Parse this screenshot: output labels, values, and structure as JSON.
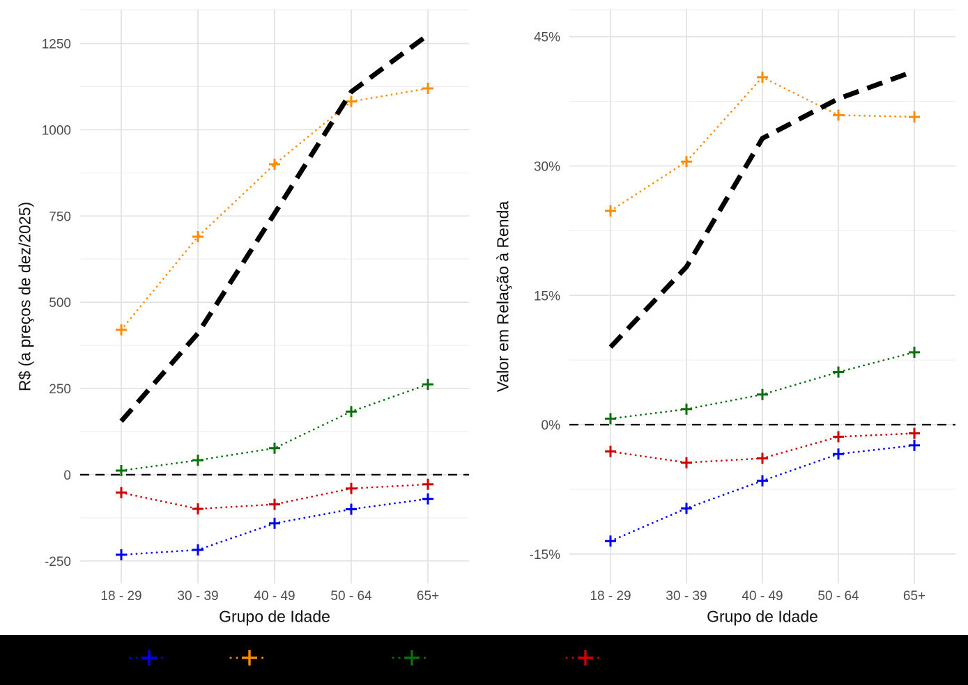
{
  "chart_data": {
    "type": "line",
    "categories": [
      "18 - 29",
      "30 - 39",
      "40 - 49",
      "50 - 64",
      "65+"
    ],
    "grid": {
      "major_color": "#E2E2E2",
      "minor_color": "#EDEDED",
      "grid_on": true
    },
    "tick_label_color": "#4D4D4D",
    "background": "#FFFFFF",
    "panels": [
      {
        "xlabel": "Grupo de Idade",
        "ylabel": "R$ (a preços de dez/2025)",
        "ylim": [
          -315,
          1350
        ],
        "yticks": [
          {
            "value": -250,
            "label": "-250"
          },
          {
            "value": 0,
            "label": "0"
          },
          {
            "value": 250,
            "label": "250"
          },
          {
            "value": 500,
            "label": "500"
          },
          {
            "value": 750,
            "label": "750"
          },
          {
            "value": 1000,
            "label": "1000"
          },
          {
            "value": 1250,
            "label": "1250"
          }
        ],
        "yminor": [
          -125,
          125,
          375,
          625,
          875,
          1125
        ],
        "refline": 0,
        "series": [
          {
            "name": "series-blue",
            "color": "#0000EE",
            "line": "dotted",
            "marker": "plus",
            "values": [
              -232,
              -218,
              -141,
              -100,
              -70
            ]
          },
          {
            "name": "series-orange",
            "color": "#FF8C00",
            "line": "dotted",
            "marker": "plus",
            "values": [
              420,
              690,
              900,
              1082,
              1120
            ]
          },
          {
            "name": "series-green",
            "color": "#0B700B",
            "line": "dotted",
            "marker": "plus",
            "values": [
              12,
              42,
              77,
              183,
              262
            ]
          },
          {
            "name": "series-red",
            "color": "#CC0000",
            "line": "dotted",
            "marker": "plus",
            "values": [
              -52,
              -99,
              -86,
              -40,
              -28
            ]
          },
          {
            "name": "series-black-dashed",
            "color": "#000000",
            "line": "dashed-thick",
            "marker": "none",
            "values": [
              155,
              410,
              757,
              1110,
              1275
            ]
          }
        ]
      },
      {
        "xlabel": "Grupo de Idade",
        "ylabel": "Valor em Relação à Renda",
        "ylim": [
          -18.4,
          48.2
        ],
        "yticks": [
          {
            "value": -15,
            "label": "-15%"
          },
          {
            "value": 0,
            "label": "0%"
          },
          {
            "value": 15,
            "label": "15%"
          },
          {
            "value": 30,
            "label": "30%"
          },
          {
            "value": 45,
            "label": "45%"
          }
        ],
        "yminor": [
          -7.5,
          7.5,
          22.5,
          37.5
        ],
        "refline": 0,
        "series": [
          {
            "name": "series-blue",
            "color": "#0000EE",
            "line": "dotted",
            "marker": "plus",
            "values": [
              -13.5,
              -9.7,
              -6.5,
              -3.4,
              -2.4
            ]
          },
          {
            "name": "series-orange",
            "color": "#FF8C00",
            "line": "dotted",
            "marker": "plus",
            "values": [
              24.8,
              30.5,
              40.3,
              35.9,
              35.7
            ]
          },
          {
            "name": "series-green",
            "color": "#0B700B",
            "line": "dotted",
            "marker": "plus",
            "values": [
              0.7,
              1.8,
              3.5,
              6.1,
              8.4
            ]
          },
          {
            "name": "series-red",
            "color": "#CC0000",
            "line": "dotted",
            "marker": "plus",
            "values": [
              -3.1,
              -4.4,
              -3.9,
              -1.4,
              -1.0
            ]
          },
          {
            "name": "series-black-dashed",
            "color": "#000000",
            "line": "dashed-thick",
            "marker": "none",
            "values": [
              9.0,
              18.3,
              33.2,
              37.8,
              41.0
            ]
          }
        ]
      }
    ],
    "legend": {
      "background": "#000000",
      "labels_visible": false,
      "items": [
        {
          "series": "series-blue",
          "color": "#0000EE"
        },
        {
          "series": "series-orange",
          "color": "#FF8C00"
        },
        {
          "series": "series-green",
          "color": "#0B700B"
        },
        {
          "series": "series-red",
          "color": "#CC0000"
        }
      ]
    }
  }
}
